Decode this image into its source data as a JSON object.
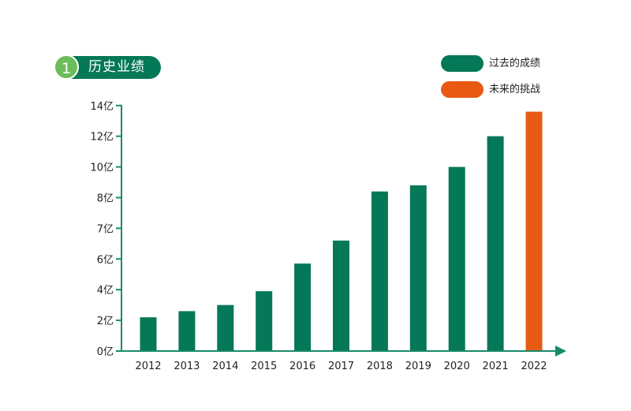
{
  "header": {
    "number": "1",
    "title": "历史业绩"
  },
  "legend": [
    {
      "label": "过去的成绩",
      "color": "#047857"
    },
    {
      "label": "未来的挑战",
      "color": "#e85a14"
    }
  ],
  "chart_data": {
    "type": "bar",
    "title": "历史业绩",
    "categories": [
      "2012",
      "2013",
      "2014",
      "2015",
      "2016",
      "2017",
      "2018",
      "2019",
      "2020",
      "2021",
      "2022"
    ],
    "series": [
      {
        "name": "过去的成绩",
        "color": "#047857",
        "values": [
          2.2,
          2.6,
          3.0,
          3.9,
          5.7,
          6.6,
          8.4,
          8.8,
          10,
          12,
          null
        ]
      },
      {
        "name": "未来的挑战",
        "color": "#e85a14",
        "values": [
          null,
          null,
          null,
          null,
          null,
          null,
          null,
          null,
          null,
          null,
          13.6
        ]
      }
    ],
    "y_ticks": [
      0,
      2,
      4,
      6,
      7,
      8,
      10,
      12,
      14
    ],
    "y_tick_labels": [
      "0亿",
      "2亿",
      "4亿",
      "6亿",
      "7亿",
      "8亿",
      "10亿",
      "12亿",
      "14亿"
    ],
    "ylim": [
      0,
      14
    ],
    "axis_color": "#1a8a6a",
    "grid": false,
    "legend_position": "top-right"
  }
}
